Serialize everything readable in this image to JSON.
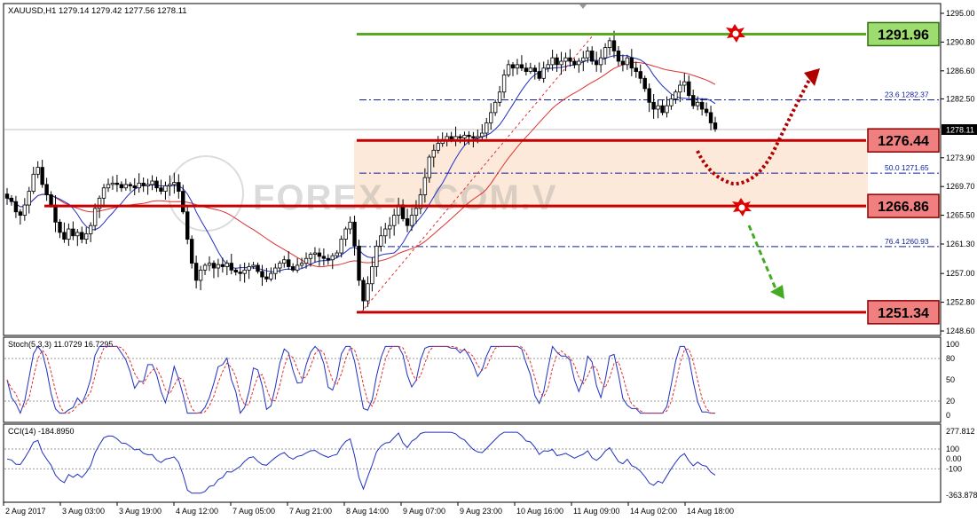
{
  "chart_data": {
    "type": "candlestick",
    "symbol_header": "XAUUSD,H1  1279.14 1279.42 1277.56 1278.11",
    "current_price": "1278.11",
    "y_ticks": [
      "1295.00",
      "1290.80",
      "1286.60",
      "1282.50",
      "1278.11",
      "1273.90",
      "1269.70",
      "1265.50",
      "1261.30",
      "1257.00",
      "1252.80",
      "1248.60"
    ],
    "x_ticks": [
      "2 Aug 2017",
      "3 Aug 03:00",
      "3 Aug 19:00",
      "4 Aug 12:00",
      "7 Aug 05:00",
      "7 Aug 21:00",
      "8 Aug 14:00",
      "9 Aug 07:00",
      "9 Aug 23:00",
      "10 Aug 16:00",
      "11 Aug 09:00",
      "14 Aug 02:00",
      "14 Aug 18:00"
    ],
    "levels": [
      {
        "price": "1291.96",
        "color": "#55aa22",
        "box_fill": "#9ddc6e",
        "box_border": "#2f6f10"
      },
      {
        "price": "1276.44",
        "color": "#c40000",
        "box_fill": "#f08080",
        "box_border": "#8b0000"
      },
      {
        "price": "1266.86",
        "color": "#c40000",
        "box_fill": "#f08080",
        "box_border": "#8b0000"
      },
      {
        "price": "1251.34",
        "color": "#c40000",
        "box_fill": "#f08080",
        "box_border": "#8b0000"
      }
    ],
    "fib_levels": [
      {
        "label": "23.6",
        "price": "1282.37"
      },
      {
        "label": "50.0",
        "price": "1271.65"
      },
      {
        "label": "76.4",
        "price": "1260.93"
      }
    ],
    "watermark": "FOREX-...COM.V",
    "close_series": [
      1268.0,
      1267.5,
      1266.0,
      1265.5,
      1267.0,
      1269.0,
      1271.5,
      1272.5,
      1270.0,
      1268.5,
      1267.0,
      1264.5,
      1263.0,
      1262.0,
      1263.5,
      1262.5,
      1263.0,
      1262.0,
      1262.8,
      1264.0,
      1266.5,
      1268.0,
      1269.5,
      1270.0,
      1270.2,
      1270.0,
      1269.5,
      1270.0,
      1269.8,
      1269.5,
      1270.2,
      1269.8,
      1270.0,
      1270.5,
      1269.5,
      1269.0,
      1269.8,
      1270.0,
      1270.3,
      1269.0,
      1266.0,
      1262.0,
      1258.5,
      1256.0,
      1257.5,
      1258.2,
      1258.5,
      1257.8,
      1258.3,
      1258.0,
      1258.5,
      1257.5,
      1257.2,
      1257.0,
      1257.5,
      1258.0,
      1258.2,
      1257.3,
      1256.5,
      1256.2,
      1257.0,
      1257.8,
      1258.5,
      1259.0,
      1258.0,
      1257.5,
      1258.2,
      1258.5,
      1259.2,
      1259.8,
      1260.0,
      1259.5,
      1259.2,
      1259.0,
      1259.6,
      1260.0,
      1262.0,
      1263.5,
      1264.5,
      1261.0,
      1256.0,
      1253.0,
      1255.5,
      1258.0,
      1261.0,
      1262.5,
      1263.5,
      1264.0,
      1265.5,
      1267.0,
      1265.0,
      1264.0,
      1265.5,
      1266.5,
      1268.5,
      1271.0,
      1274.0,
      1275.0,
      1276.0,
      1276.5,
      1277.0,
      1276.5,
      1277.0,
      1276.8,
      1277.2,
      1277.0,
      1276.8,
      1277.0,
      1277.5,
      1279.0,
      1280.5,
      1282.0,
      1283.5,
      1286.0,
      1287.5,
      1287.0,
      1287.5,
      1287.0,
      1286.5,
      1287.0,
      1286.5,
      1285.5,
      1287.0,
      1287.5,
      1288.5,
      1287.5,
      1288.0,
      1288.5,
      1288.0,
      1287.5,
      1288.0,
      1288.5,
      1289.5,
      1288.0,
      1287.5,
      1288.5,
      1290.0,
      1291.0,
      1289.5,
      1288.0,
      1287.5,
      1288.5,
      1287.0,
      1286.5,
      1285.5,
      1284.0,
      1282.0,
      1281.0,
      1281.5,
      1280.5,
      1281.5,
      1282.5,
      1283.5,
      1284.5,
      1285.0,
      1283.0,
      1281.5,
      1282.0,
      1281.0,
      1280.5,
      1279.0,
      1278.11
    ],
    "stoch_header": "Stoch(5,3,3) 11.0729 16.7295",
    "stoch_ticks": [
      "100",
      "80",
      "50",
      "20",
      "0"
    ],
    "cci_header": "CCI(14) -184.8950",
    "cci_ticks": [
      "277.812",
      "100",
      "0.00",
      "-100",
      "-363.878"
    ]
  }
}
